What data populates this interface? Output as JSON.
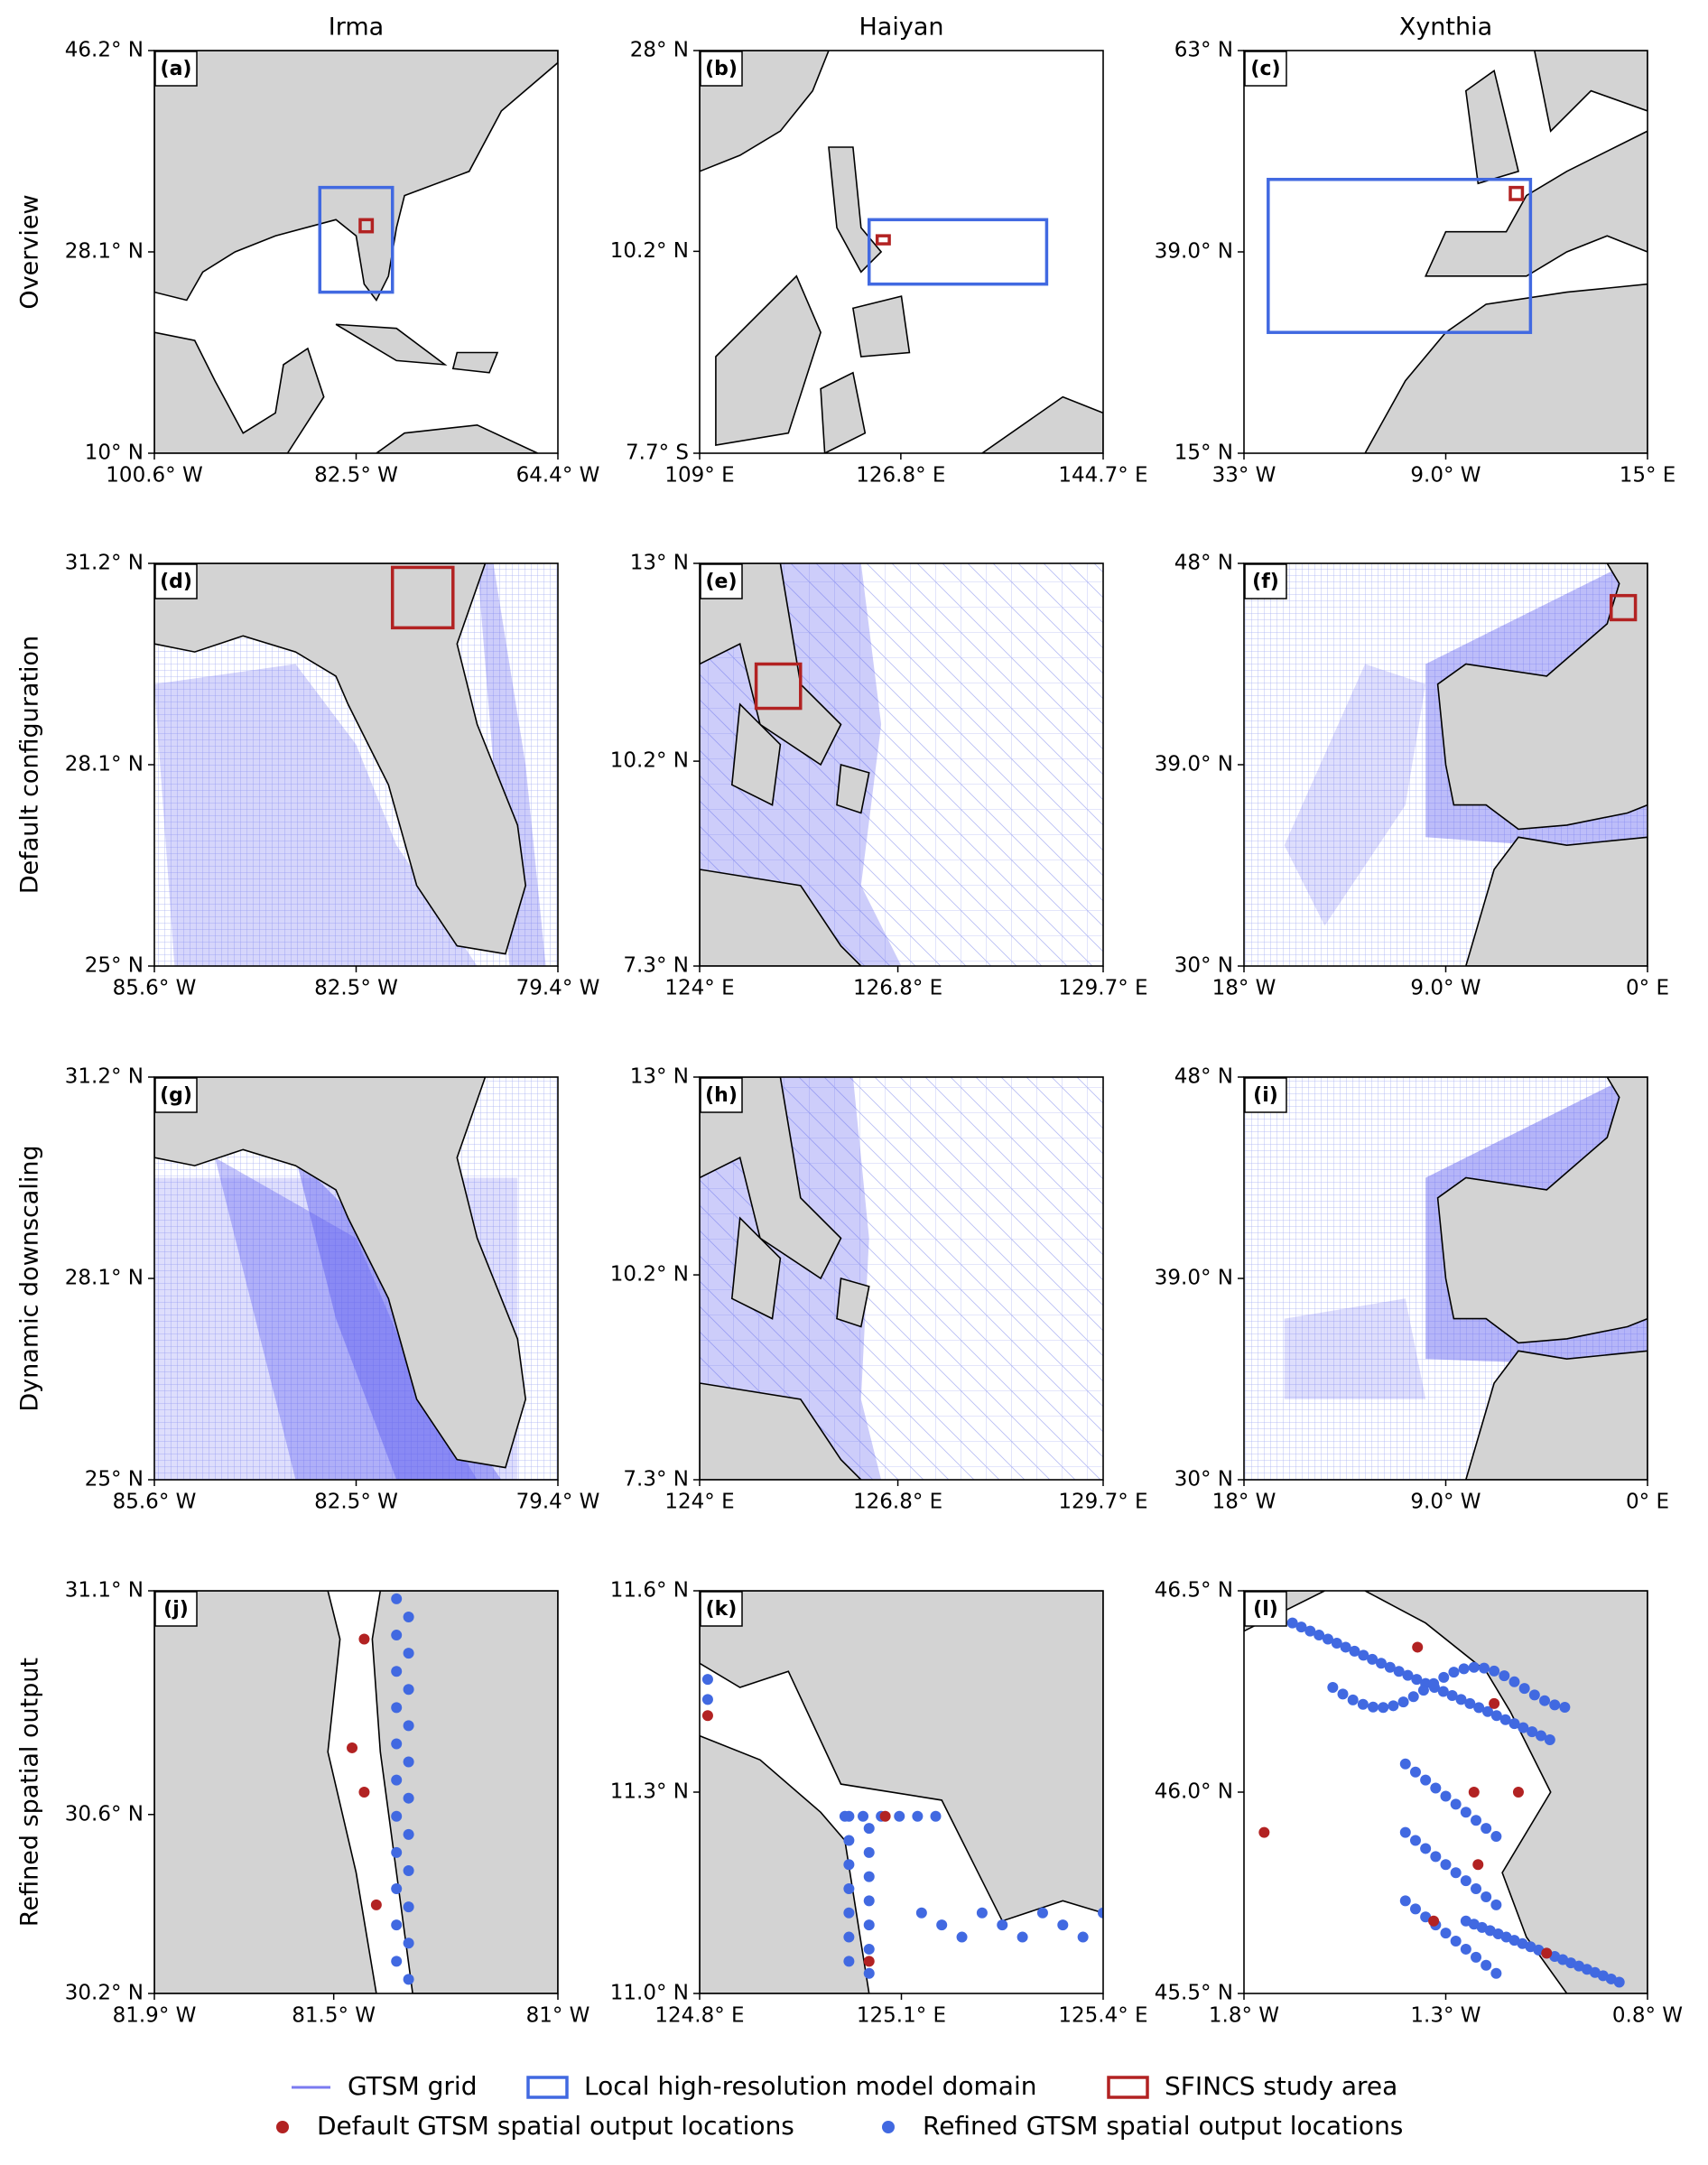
{
  "columns": [
    "Irma",
    "Haiyan",
    "Xynthia"
  ],
  "rows": [
    "Overview",
    "Default configuration",
    "Dynamic downscaling",
    "Refined spatial output"
  ],
  "chart_data": [
    {
      "type": "map",
      "panel": "(a)",
      "xlim": [
        -100.6,
        -64.4
      ],
      "ylim": [
        10,
        46.2
      ],
      "xticks": [
        {
          "value": -100.6,
          "label": "100.6° W"
        },
        {
          "value": -82.5,
          "label": "82.5° W"
        },
        {
          "value": -64.4,
          "label": "64.4° W"
        }
      ],
      "yticks": [
        {
          "value": 10,
          "label": "10° N"
        },
        {
          "value": 28.1,
          "label": "28.1° N"
        },
        {
          "value": 46.2,
          "label": "46.2° N"
        }
      ]
    },
    {
      "type": "map",
      "panel": "(b)",
      "xlim": [
        109,
        144.7
      ],
      "ylim": [
        -7.7,
        28
      ],
      "xticks": [
        {
          "value": 109,
          "label": "109° E"
        },
        {
          "value": 126.8,
          "label": "126.8° E"
        },
        {
          "value": 144.7,
          "label": "144.7° E"
        }
      ],
      "yticks": [
        {
          "value": -7.7,
          "label": "7.7° S"
        },
        {
          "value": 10.2,
          "label": "10.2° N"
        },
        {
          "value": 28,
          "label": "28° N"
        }
      ]
    },
    {
      "type": "map",
      "panel": "(c)",
      "xlim": [
        -33,
        15
      ],
      "ylim": [
        15,
        63
      ],
      "xticks": [
        {
          "value": -33,
          "label": "33° W"
        },
        {
          "value": -9,
          "label": "9.0° W"
        },
        {
          "value": 15,
          "label": "15° E"
        }
      ],
      "yticks": [
        {
          "value": 15,
          "label": "15° N"
        },
        {
          "value": 39,
          "label": "39.0° N"
        },
        {
          "value": 63,
          "label": "63° N"
        }
      ]
    },
    {
      "type": "map",
      "panel": "(d)",
      "xlim": [
        -85.6,
        -79.4
      ],
      "ylim": [
        25,
        31.2
      ],
      "xticks": [
        {
          "value": -85.6,
          "label": "85.6° W"
        },
        {
          "value": -82.5,
          "label": "82.5° W"
        },
        {
          "value": -79.4,
          "label": "79.4° W"
        }
      ],
      "yticks": [
        {
          "value": 25,
          "label": "25° N"
        },
        {
          "value": 28.1,
          "label": "28.1° N"
        },
        {
          "value": 31.2,
          "label": "31.2° N"
        }
      ]
    },
    {
      "type": "map",
      "panel": "(e)",
      "xlim": [
        124,
        129.7
      ],
      "ylim": [
        7.3,
        13
      ],
      "xticks": [
        {
          "value": 124,
          "label": "124° E"
        },
        {
          "value": 126.8,
          "label": "126.8° E"
        },
        {
          "value": 129.7,
          "label": "129.7° E"
        }
      ],
      "yticks": [
        {
          "value": 7.3,
          "label": "7.3° N"
        },
        {
          "value": 10.2,
          "label": "10.2° N"
        },
        {
          "value": 13,
          "label": "13° N"
        }
      ]
    },
    {
      "type": "map",
      "panel": "(f)",
      "xlim": [
        -18,
        0
      ],
      "ylim": [
        30,
        48
      ],
      "xticks": [
        {
          "value": -18,
          "label": "18° W"
        },
        {
          "value": -9,
          "label": "9.0° W"
        },
        {
          "value": 0,
          "label": "0° E"
        }
      ],
      "yticks": [
        {
          "value": 30,
          "label": "30° N"
        },
        {
          "value": 39,
          "label": "39.0° N"
        },
        {
          "value": 48,
          "label": "48° N"
        }
      ]
    },
    {
      "type": "map",
      "panel": "(g)",
      "xlim": [
        -85.6,
        -79.4
      ],
      "ylim": [
        25,
        31.2
      ],
      "xticks": [
        {
          "value": -85.6,
          "label": "85.6° W"
        },
        {
          "value": -82.5,
          "label": "82.5° W"
        },
        {
          "value": -79.4,
          "label": "79.4° W"
        }
      ],
      "yticks": [
        {
          "value": 25,
          "label": "25° N"
        },
        {
          "value": 28.1,
          "label": "28.1° N"
        },
        {
          "value": 31.2,
          "label": "31.2° N"
        }
      ]
    },
    {
      "type": "map",
      "panel": "(h)",
      "xlim": [
        124,
        129.7
      ],
      "ylim": [
        7.3,
        13
      ],
      "xticks": [
        {
          "value": 124,
          "label": "124° E"
        },
        {
          "value": 126.8,
          "label": "126.8° E"
        },
        {
          "value": 129.7,
          "label": "129.7° E"
        }
      ],
      "yticks": [
        {
          "value": 7.3,
          "label": "7.3° N"
        },
        {
          "value": 10.2,
          "label": "10.2° N"
        },
        {
          "value": 13,
          "label": "13° N"
        }
      ]
    },
    {
      "type": "map",
      "panel": "(i)",
      "xlim": [
        -18,
        0
      ],
      "ylim": [
        30,
        48
      ],
      "xticks": [
        {
          "value": -18,
          "label": "18° W"
        },
        {
          "value": -9,
          "label": "9.0° W"
        },
        {
          "value": 0,
          "label": "0° E"
        }
      ],
      "yticks": [
        {
          "value": 30,
          "label": "30° N"
        },
        {
          "value": 39,
          "label": "39.0° N"
        },
        {
          "value": 48,
          "label": "48° N"
        }
      ]
    },
    {
      "type": "map",
      "panel": "(j)",
      "xlim": [
        -81.9,
        -81
      ],
      "ylim": [
        30.2,
        31.1
      ],
      "xticks": [
        {
          "value": -81.9,
          "label": "81.9° W"
        },
        {
          "value": -81.5,
          "label": "81.5° W"
        },
        {
          "value": -81,
          "label": "81° W"
        }
      ],
      "yticks": [
        {
          "value": 30.2,
          "label": "30.2° N"
        },
        {
          "value": 30.6,
          "label": "30.6° N"
        },
        {
          "value": 31.1,
          "label": "31.1° N"
        }
      ]
    },
    {
      "type": "map",
      "panel": "(k)",
      "xlim": [
        124.8,
        125.4
      ],
      "ylim": [
        11,
        11.6
      ],
      "xticks": [
        {
          "value": 124.8,
          "label": "124.8° E"
        },
        {
          "value": 125.1,
          "label": "125.1° E"
        },
        {
          "value": 125.4,
          "label": "125.4° E"
        }
      ],
      "yticks": [
        {
          "value": 11,
          "label": "11.0° N"
        },
        {
          "value": 11.3,
          "label": "11.3° N"
        },
        {
          "value": 11.6,
          "label": "11.6° N"
        }
      ]
    },
    {
      "type": "map",
      "panel": "(l)",
      "xlim": [
        -1.8,
        -0.8
      ],
      "ylim": [
        45.5,
        46.5
      ],
      "xticks": [
        {
          "value": -1.8,
          "label": "1.8° W"
        },
        {
          "value": -1.3,
          "label": "1.3° W"
        },
        {
          "value": -0.8,
          "label": "0.8° W"
        }
      ],
      "yticks": [
        {
          "value": 45.5,
          "label": "45.5° N"
        },
        {
          "value": 46,
          "label": "46.0° N"
        },
        {
          "value": 46.5,
          "label": "46.5° N"
        }
      ]
    }
  ],
  "legend": [
    {
      "name": "GTSM grid",
      "color": "#7b7bf0",
      "marker": "line"
    },
    {
      "name": "Local high-resolution model domain",
      "color": "#4169e1",
      "marker": "box"
    },
    {
      "name": "SFINCS study area",
      "color": "#b22222",
      "marker": "box"
    },
    {
      "name": "Default GTSM spatial output locations",
      "color": "#b22222",
      "marker": "dot"
    },
    {
      "name": "Refined GTSM spatial output locations",
      "color": "#4169e1",
      "marker": "dot"
    }
  ]
}
